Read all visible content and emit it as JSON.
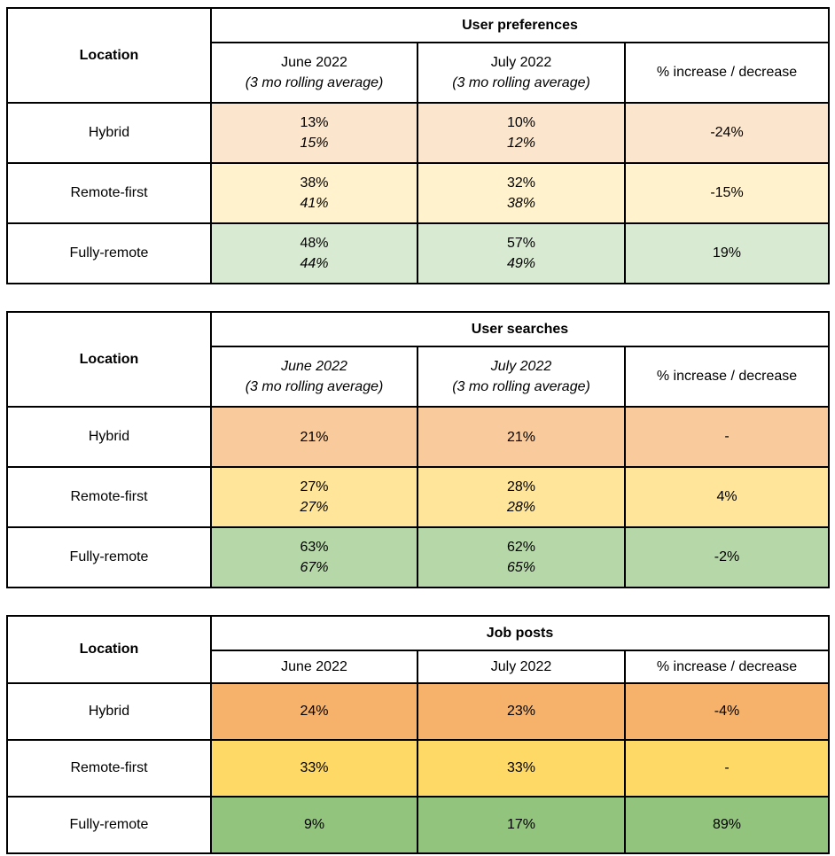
{
  "page_background": "#ffffff",
  "tables": [
    {
      "title": "User preferences",
      "location_header": "Location",
      "change_header": "% increase / decrease",
      "june_header": {
        "month": "June 2022",
        "note": "(3 mo rolling average)"
      },
      "july_header": {
        "month": "July 2022",
        "note": "(3 mo rolling average)"
      },
      "rows": [
        {
          "location": "Hybrid",
          "june": "13%",
          "june_avg": "15%",
          "july": "10%",
          "july_avg": "12%",
          "change": "-24%",
          "color": "#fce5cd"
        },
        {
          "location": "Remote-first",
          "june": "38%",
          "june_avg": "41%",
          "july": "32%",
          "july_avg": "38%",
          "change": "-15%",
          "color": "#fff2cc"
        },
        {
          "location": "Fully-remote",
          "june": "48%",
          "june_avg": "44%",
          "july": "57%",
          "july_avg": "49%",
          "change": "19%",
          "color": "#d9ead3"
        }
      ]
    },
    {
      "title": "User searches",
      "location_header": "Location",
      "change_header": "% increase / decrease",
      "june_header": {
        "month": "June 2022",
        "note": "(3 mo rolling average)"
      },
      "july_header": {
        "month": "July 2022",
        "note": "(3 mo rolling average)"
      },
      "rows": [
        {
          "location": "Hybrid",
          "june": "21%",
          "july": "21%",
          "change": "-",
          "color": "#f9cb9c"
        },
        {
          "location": "Remote-first",
          "june": "27%",
          "june_avg": "27%",
          "july": "28%",
          "july_avg": "28%",
          "change": "4%",
          "color": "#ffe599"
        },
        {
          "location": "Fully-remote",
          "june": "63%",
          "june_avg": "67%",
          "july": "62%",
          "july_avg": "65%",
          "change": "-2%",
          "color": "#b6d7a8"
        }
      ]
    },
    {
      "title": "Job posts",
      "location_header": "Location",
      "change_header": "% increase / decrease",
      "june_header": {
        "month": "June 2022"
      },
      "july_header": {
        "month": "July 2022"
      },
      "rows": [
        {
          "location": "Hybrid",
          "june": "24%",
          "july": "23%",
          "change": "-4%",
          "color": "#f6b26b"
        },
        {
          "location": "Remote-first",
          "june": "33%",
          "july": "33%",
          "change": "-",
          "color": "#ffd966"
        },
        {
          "location": "Fully-remote",
          "june": "9%",
          "july": "17%",
          "change": "89%",
          "color": "#93c47d"
        }
      ]
    }
  ]
}
